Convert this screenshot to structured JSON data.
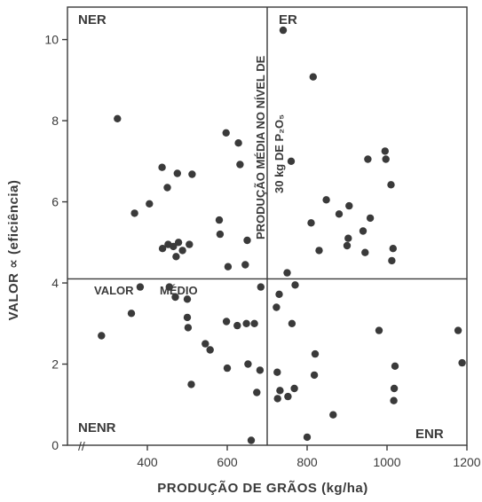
{
  "chart_data": {
    "type": "scatter",
    "title": "",
    "xlabel": "PRODUÇÃO DE GRÃOS (kg/ha)",
    "ylabel": "VALOR ∝ (eficiência)",
    "xlim": [
      200,
      1200
    ],
    "ylim": [
      0,
      10.8
    ],
    "x_ticks": [
      400,
      600,
      800,
      1000,
      1200
    ],
    "y_ticks": [
      0,
      2,
      4,
      6,
      8,
      10
    ],
    "axis_break_symbol": "//",
    "grid": false,
    "reference_lines": {
      "vertical_x": 700,
      "vertical_label_line1": "PRODUÇÃO MÉDIA NO NÍVEL DE",
      "vertical_label_line2": "30 kg DE P₂O₅",
      "horizontal_y": 4.1,
      "horizontal_label_1": "VALOR",
      "horizontal_label_2": "MÉDIO"
    },
    "quadrant_labels": {
      "top_left": "NER",
      "top_right": "ER",
      "bottom_left": "NENR",
      "bottom_right": "ENR"
    },
    "points": [
      {
        "x": 285,
        "y": 2.7
      },
      {
        "x": 325,
        "y": 8.05
      },
      {
        "x": 360,
        "y": 3.25
      },
      {
        "x": 368,
        "y": 5.72
      },
      {
        "x": 382,
        "y": 3.9
      },
      {
        "x": 405,
        "y": 5.95
      },
      {
        "x": 437,
        "y": 6.85
      },
      {
        "x": 438,
        "y": 4.85
      },
      {
        "x": 450,
        "y": 6.35
      },
      {
        "x": 452,
        "y": 4.95
      },
      {
        "x": 455,
        "y": 3.9
      },
      {
        "x": 465,
        "y": 4.9
      },
      {
        "x": 470,
        "y": 3.65
      },
      {
        "x": 472,
        "y": 4.65
      },
      {
        "x": 475,
        "y": 6.7
      },
      {
        "x": 478,
        "y": 5.0
      },
      {
        "x": 488,
        "y": 4.8
      },
      {
        "x": 500,
        "y": 3.6
      },
      {
        "x": 500,
        "y": 3.15
      },
      {
        "x": 502,
        "y": 2.9
      },
      {
        "x": 505,
        "y": 4.95
      },
      {
        "x": 510,
        "y": 1.5
      },
      {
        "x": 512,
        "y": 6.68
      },
      {
        "x": 545,
        "y": 2.5
      },
      {
        "x": 557,
        "y": 2.35
      },
      {
        "x": 580,
        "y": 5.55
      },
      {
        "x": 582,
        "y": 5.2
      },
      {
        "x": 597,
        "y": 7.7
      },
      {
        "x": 598,
        "y": 3.05
      },
      {
        "x": 600,
        "y": 1.9
      },
      {
        "x": 602,
        "y": 4.4
      },
      {
        "x": 625,
        "y": 2.95
      },
      {
        "x": 628,
        "y": 7.45
      },
      {
        "x": 632,
        "y": 6.92
      },
      {
        "x": 645,
        "y": 4.45
      },
      {
        "x": 648,
        "y": 3.0
      },
      {
        "x": 650,
        "y": 5.05
      },
      {
        "x": 652,
        "y": 2.0
      },
      {
        "x": 660,
        "y": 0.12
      },
      {
        "x": 668,
        "y": 3.0
      },
      {
        "x": 674,
        "y": 1.3
      },
      {
        "x": 682,
        "y": 1.85
      },
      {
        "x": 684,
        "y": 3.9
      },
      {
        "x": 723,
        "y": 3.4
      },
      {
        "x": 725,
        "y": 1.8
      },
      {
        "x": 726,
        "y": 1.15
      },
      {
        "x": 730,
        "y": 3.72
      },
      {
        "x": 732,
        "y": 1.35
      },
      {
        "x": 740,
        "y": 10.23
      },
      {
        "x": 750,
        "y": 4.25
      },
      {
        "x": 752,
        "y": 1.2
      },
      {
        "x": 760,
        "y": 7.0
      },
      {
        "x": 762,
        "y": 3.0
      },
      {
        "x": 768,
        "y": 1.4
      },
      {
        "x": 770,
        "y": 3.95
      },
      {
        "x": 800,
        "y": 0.2
      },
      {
        "x": 810,
        "y": 5.48
      },
      {
        "x": 815,
        "y": 9.08
      },
      {
        "x": 818,
        "y": 1.73
      },
      {
        "x": 820,
        "y": 2.25
      },
      {
        "x": 830,
        "y": 4.8
      },
      {
        "x": 848,
        "y": 6.05
      },
      {
        "x": 865,
        "y": 0.75
      },
      {
        "x": 880,
        "y": 5.7
      },
      {
        "x": 900,
        "y": 4.92
      },
      {
        "x": 903,
        "y": 5.1
      },
      {
        "x": 905,
        "y": 5.9
      },
      {
        "x": 940,
        "y": 5.28
      },
      {
        "x": 945,
        "y": 4.75
      },
      {
        "x": 952,
        "y": 7.05
      },
      {
        "x": 958,
        "y": 5.6
      },
      {
        "x": 980,
        "y": 2.83
      },
      {
        "x": 995,
        "y": 7.25
      },
      {
        "x": 997,
        "y": 7.05
      },
      {
        "x": 1010,
        "y": 6.42
      },
      {
        "x": 1012,
        "y": 4.55
      },
      {
        "x": 1015,
        "y": 4.85
      },
      {
        "x": 1017,
        "y": 1.1
      },
      {
        "x": 1018,
        "y": 1.4
      },
      {
        "x": 1020,
        "y": 1.95
      },
      {
        "x": 1178,
        "y": 2.83
      },
      {
        "x": 1188,
        "y": 2.03
      }
    ]
  }
}
